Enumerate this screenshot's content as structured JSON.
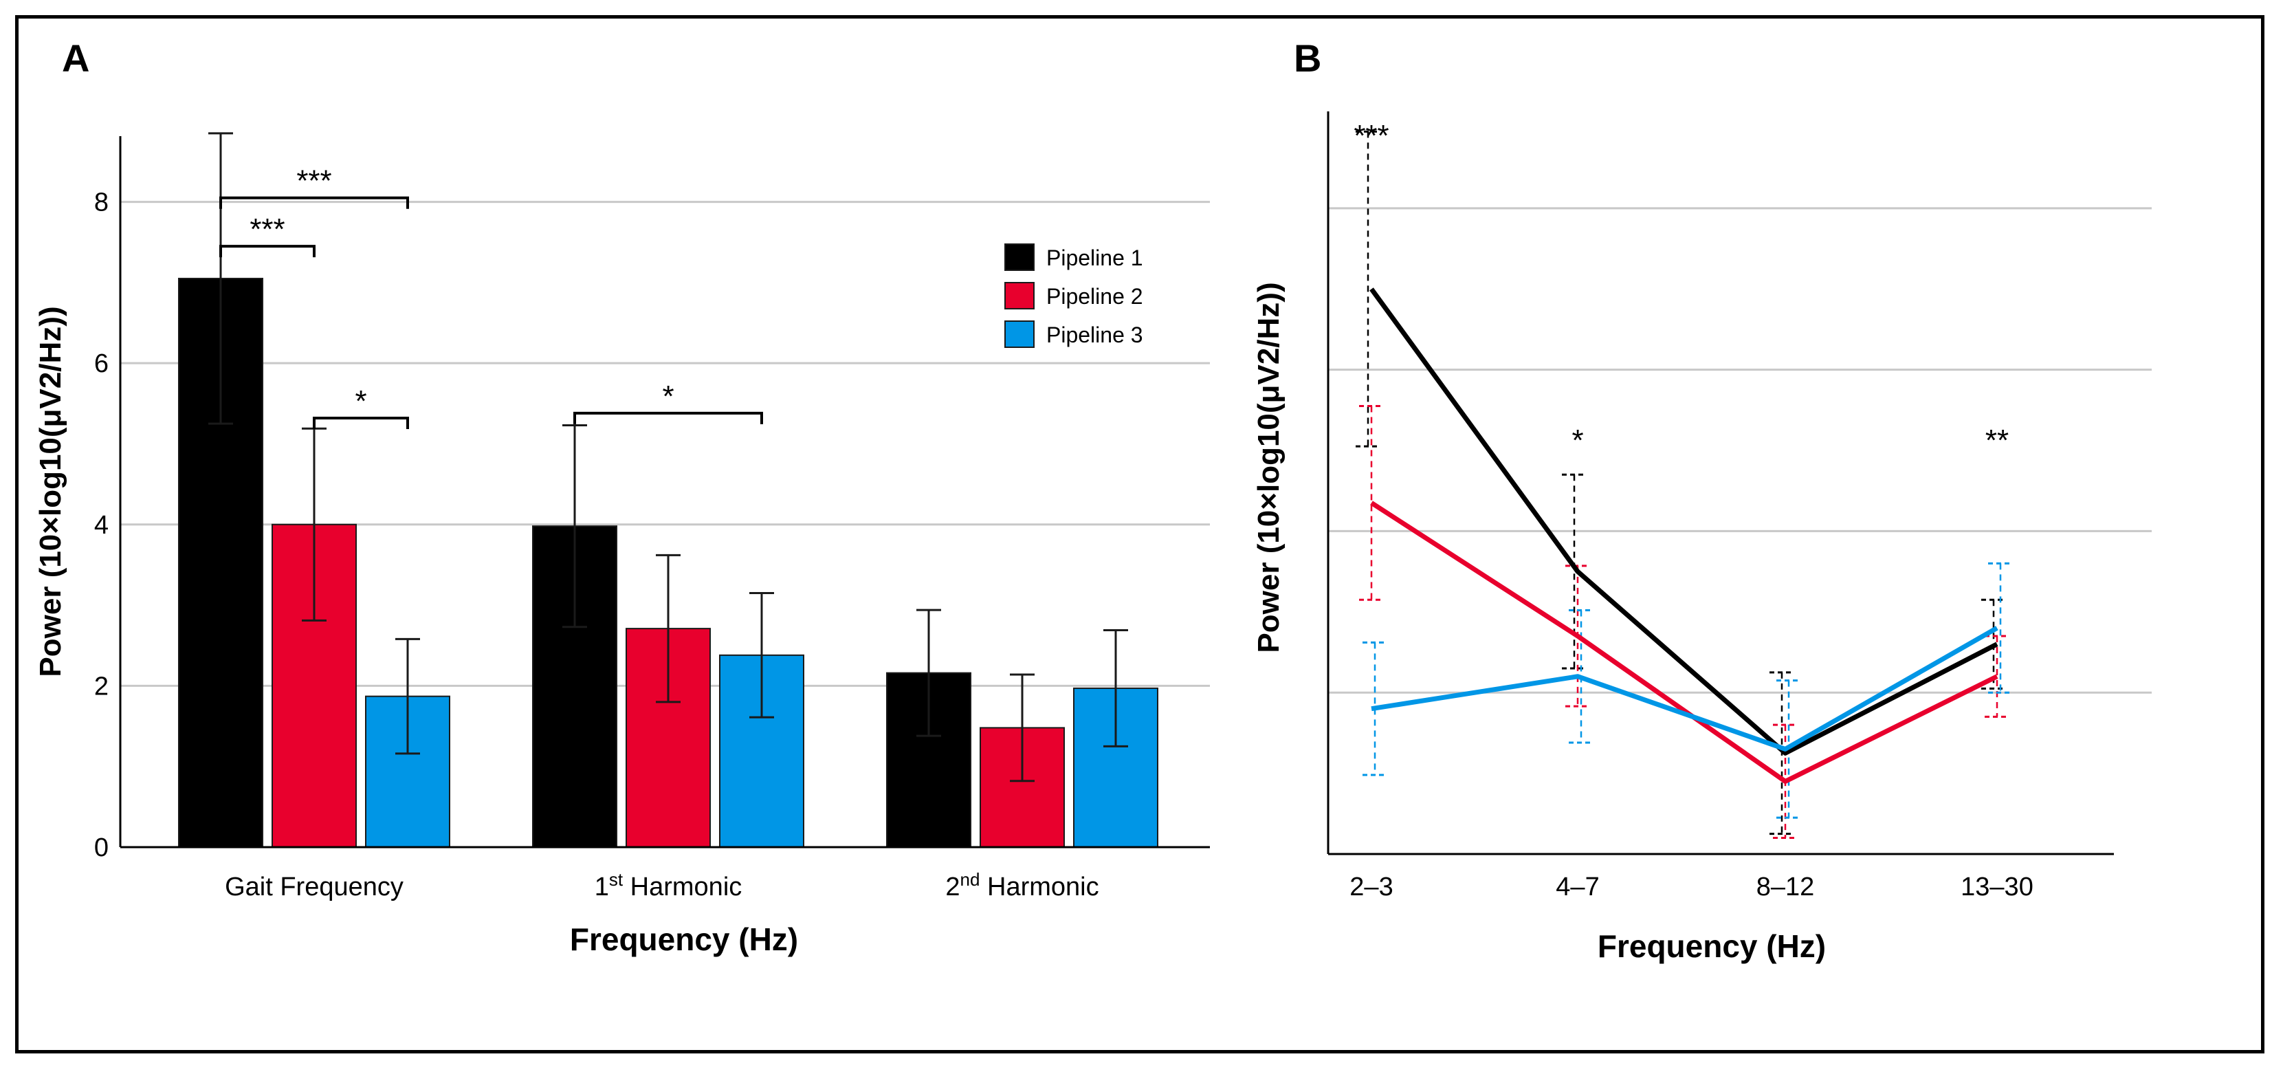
{
  "chart_data": [
    {
      "panel_label": "A",
      "type": "bar",
      "xlabel": "Frequency (Hz)",
      "ylabel": "Power (10×log10(μV2/Hz))",
      "ylim": [
        0,
        8.9
      ],
      "yticks": [
        "0",
        "2",
        "4",
        "6",
        "8"
      ],
      "grid": true,
      "categories": [
        {
          "main": "Gait Frequency",
          "sup": "",
          "rest": ""
        },
        {
          "main": "1",
          "sup": "st",
          "rest": " Harmonic"
        },
        {
          "main": "2",
          "sup": "nd",
          "rest": " Harmonic"
        }
      ],
      "legend_position": "top-right",
      "series": [
        {
          "name": "Pipeline 1",
          "color": "#000000",
          "values": [
            7.05,
            3.98,
            2.16
          ],
          "error": [
            1.8,
            1.25,
            0.78
          ]
        },
        {
          "name": "Pipeline 2",
          "color": "#e8002d",
          "values": [
            4.0,
            2.71,
            1.48
          ],
          "error": [
            1.19,
            0.91,
            0.66
          ]
        },
        {
          "name": "Pipeline 3",
          "color": "#0096e6",
          "values": [
            1.87,
            2.38,
            1.97
          ],
          "error": [
            0.71,
            0.77,
            0.72
          ]
        }
      ],
      "significance": [
        {
          "category": 0,
          "from": 0,
          "to": 1,
          "value": 7.45,
          "label": "***"
        },
        {
          "category": 0,
          "from": 0,
          "to": 2,
          "value": 8.05,
          "label": "***"
        },
        {
          "category": 0,
          "from": 1,
          "to": 2,
          "value": 5.32,
          "label": "*"
        },
        {
          "category": 1,
          "from": 0,
          "to": 2,
          "value": 5.38,
          "label": "*"
        }
      ]
    },
    {
      "panel_label": "B",
      "type": "line",
      "xlabel": "Frequency (Hz)",
      "ylabel": "Power (10×log10(μV2/Hz))",
      "ylim": [
        0,
        9.2
      ],
      "gridlines": [
        2,
        4,
        6,
        8
      ],
      "categories": [
        "2–3",
        "4–7",
        "8–12",
        "13–30"
      ],
      "series": [
        {
          "name": "Pipeline 1",
          "color": "#000000",
          "values": [
            7.0,
            3.5,
            1.25,
            2.6
          ],
          "error": [
            1.95,
            1.2,
            1.0,
            0.55
          ]
        },
        {
          "name": "Pipeline 2",
          "color": "#e8002d",
          "values": [
            4.35,
            2.7,
            0.9,
            2.2
          ],
          "error": [
            1.2,
            0.87,
            0.7,
            0.5
          ]
        },
        {
          "name": "Pipeline 3",
          "color": "#0096e6",
          "values": [
            1.8,
            2.2,
            1.3,
            2.8
          ],
          "error": [
            0.82,
            0.82,
            0.85,
            0.8
          ]
        }
      ],
      "significance": [
        {
          "category": 0,
          "label": "***"
        },
        {
          "category": 1,
          "label": "*"
        },
        {
          "category": 3,
          "label": "**"
        }
      ]
    }
  ]
}
